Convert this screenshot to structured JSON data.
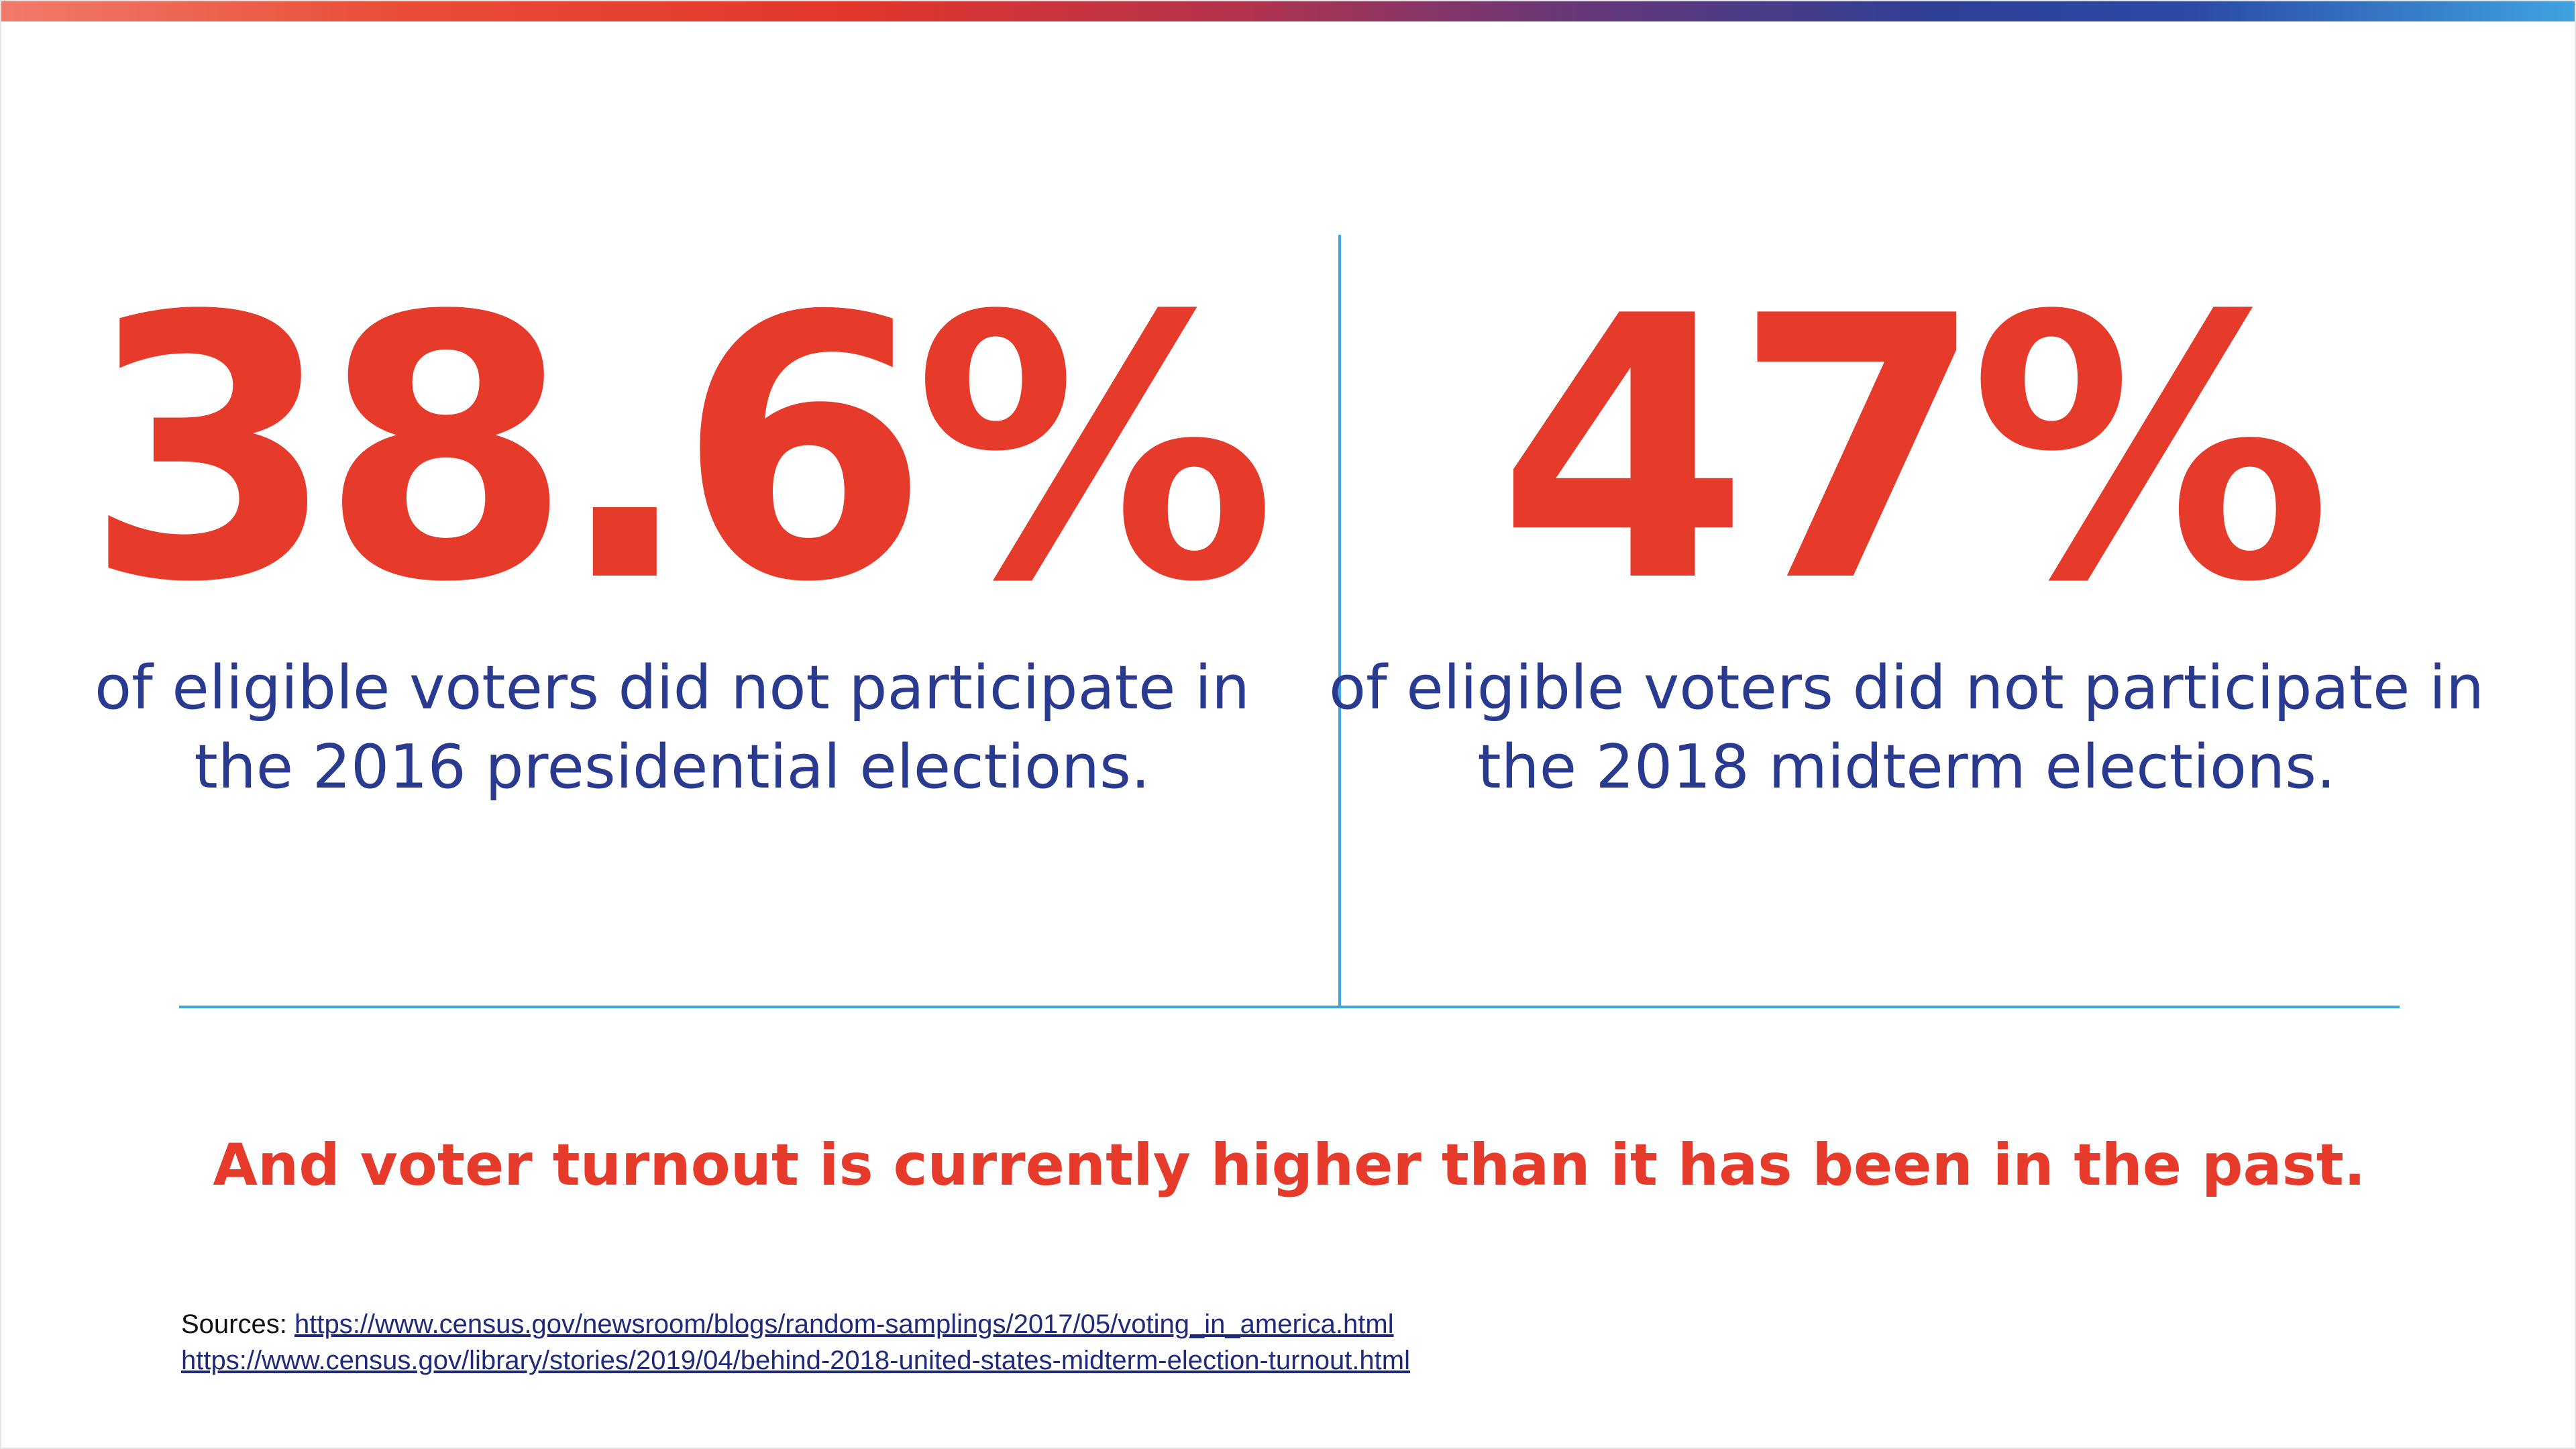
{
  "stats": [
    {
      "value": "38.6%",
      "description": "of eligible voters did not participate in the 2016 presidential elections."
    },
    {
      "value": "47%",
      "description": "of eligible voters did not participate in the 2018 midterm elections."
    }
  ],
  "tagline": "And voter turnout is currently higher than it has been in the past.",
  "sources": {
    "label": "Sources:",
    "links": [
      "https://www.census.gov/newsroom/blogs/random-samplings/2017/05/voting_in_america.html",
      "https://www.census.gov/library/stories/2019/04/behind-2018-united-states-midterm-election-turnout.html"
    ]
  },
  "colors": {
    "accent_red": "#e63a2a",
    "text_navy": "#2a3a8f",
    "divider_blue": "#3ea6dd",
    "link_navy": "#1f2a78"
  }
}
